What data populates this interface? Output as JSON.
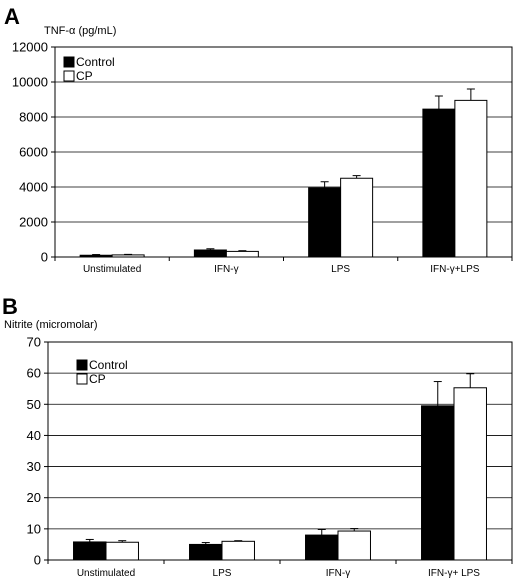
{
  "chart_data": [
    {
      "type": "bar",
      "panel": "A",
      "ylabel": "TNF-α (pg/mL)",
      "ylim": [
        0,
        12000
      ],
      "yticks": [
        "0",
        "2000",
        "4000",
        "6000",
        "8000",
        "10000",
        "12000"
      ],
      "categories": [
        "Unstimulated",
        "IFN-γ",
        "LPS",
        "IFN-γ+LPS"
      ],
      "legend_position": "top-left",
      "series": [
        {
          "name": "Control",
          "color": "#000000",
          "values": [
            100,
            400,
            3950,
            8450
          ],
          "errors": [
            40,
            70,
            350,
            750
          ]
        },
        {
          "name": "CP",
          "color": "#ffffff",
          "values": [
            120,
            320,
            4500,
            8950
          ],
          "errors": [
            30,
            40,
            150,
            650
          ]
        }
      ]
    },
    {
      "type": "bar",
      "panel": "B",
      "ylabel": "Nitrite (micromolar)",
      "ylim": [
        0,
        70
      ],
      "yticks": [
        "0",
        "10",
        "20",
        "30",
        "40",
        "50",
        "60",
        "70"
      ],
      "categories": [
        "Unstimulated",
        "LPS",
        "IFN-γ",
        "IFN-γ+ LPS"
      ],
      "legend_position": "top-left",
      "series": [
        {
          "name": "Control",
          "color": "#000000",
          "values": [
            5.8,
            5.0,
            8.0,
            49.5
          ],
          "errors": [
            0.8,
            0.6,
            1.8,
            7.8
          ]
        },
        {
          "name": "CP",
          "color": "#ffffff",
          "values": [
            5.7,
            6.0,
            9.3,
            55.3
          ],
          "errors": [
            0.5,
            0.2,
            0.8,
            4.5
          ]
        }
      ]
    }
  ]
}
